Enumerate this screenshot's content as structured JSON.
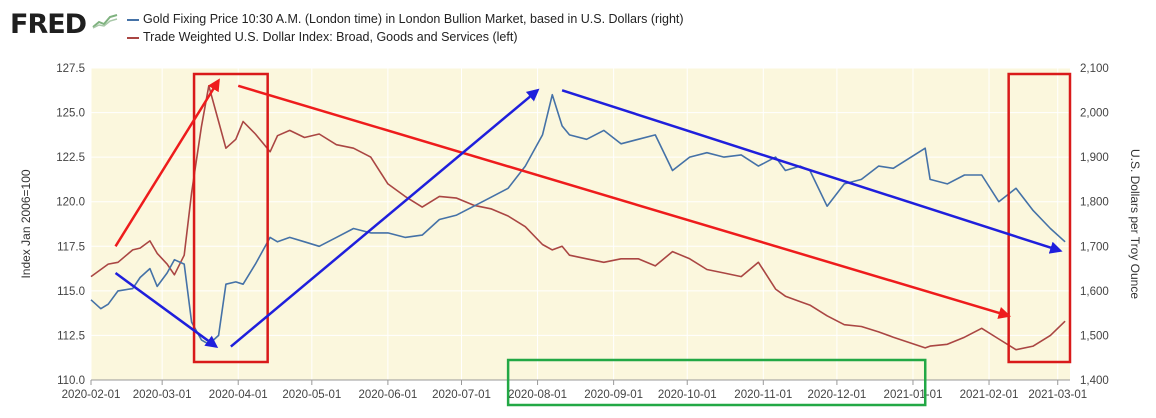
{
  "logo": {
    "text": "FRED"
  },
  "legend": [
    {
      "label": "Gold Fixing Price 10:30 A.M. (London time) in London Bullion Market, based in U.S. Dollars (right)",
      "color": "#4572a7"
    },
    {
      "label": "Trade Weighted U.S. Dollar Index: Broad, Goods and Services (left)",
      "color": "#aa4643"
    }
  ],
  "chart_data": {
    "type": "line",
    "ylabel": "Index Jan 2006=100",
    "y2label": "U.S. Dollars per Troy Ounce",
    "ylim": [
      110.0,
      127.5
    ],
    "y2lim": [
      1400,
      2100
    ],
    "xlim": [
      "2020-02-01",
      "2021-03-06"
    ],
    "x_ticks": [
      "2020-02-01",
      "2020-03-01",
      "2020-04-01",
      "2020-05-01",
      "2020-06-01",
      "2020-07-01",
      "2020-08-01",
      "2020-09-01",
      "2020-10-01",
      "2020-11-01",
      "2020-12-01",
      "2021-01-01",
      "2021-02-01",
      "2021-03-01"
    ],
    "y_ticks": [
      "110.0",
      "112.5",
      "115.0",
      "117.5",
      "120.0",
      "122.5",
      "125.0",
      "127.5"
    ],
    "y2_ticks": [
      "1,400",
      "1,500",
      "1,600",
      "1,700",
      "1,800",
      "1,900",
      "2,000",
      "2,100"
    ],
    "grid": true,
    "legend_position": "top",
    "series": [
      {
        "name": "Gold Fixing Price 10:30 A.M. (London time) in London Bullion Market, based in U.S. Dollars (right)",
        "axis": "right",
        "color": "#4572a7",
        "x": [
          "2020-02-01",
          "2020-02-05",
          "2020-02-08",
          "2020-02-12",
          "2020-02-18",
          "2020-02-21",
          "2020-02-25",
          "2020-02-28",
          "2020-03-03",
          "2020-03-06",
          "2020-03-10",
          "2020-03-13",
          "2020-03-17",
          "2020-03-20",
          "2020-03-24",
          "2020-03-27",
          "2020-03-31",
          "2020-04-03",
          "2020-04-08",
          "2020-04-14",
          "2020-04-17",
          "2020-04-22",
          "2020-04-28",
          "2020-05-04",
          "2020-05-11",
          "2020-05-18",
          "2020-05-25",
          "2020-06-01",
          "2020-06-08",
          "2020-06-15",
          "2020-06-22",
          "2020-06-29",
          "2020-07-06",
          "2020-07-13",
          "2020-07-20",
          "2020-07-27",
          "2020-08-03",
          "2020-08-07",
          "2020-08-11",
          "2020-08-14",
          "2020-08-21",
          "2020-08-28",
          "2020-09-04",
          "2020-09-11",
          "2020-09-18",
          "2020-09-25",
          "2020-10-02",
          "2020-10-09",
          "2020-10-16",
          "2020-10-23",
          "2020-10-30",
          "2020-11-06",
          "2020-11-10",
          "2020-11-16",
          "2020-11-20",
          "2020-11-27",
          "2020-12-04",
          "2020-12-11",
          "2020-12-18",
          "2020-12-24",
          "2021-01-06",
          "2021-01-08",
          "2021-01-15",
          "2021-01-22",
          "2021-01-29",
          "2021-02-05",
          "2021-02-12",
          "2021-02-19",
          "2021-02-26",
          "2021-03-04"
        ],
        "values": [
          1580,
          1560,
          1570,
          1600,
          1605,
          1630,
          1650,
          1610,
          1640,
          1670,
          1660,
          1530,
          1490,
          1480,
          1500,
          1615,
          1620,
          1615,
          1660,
          1720,
          1710,
          1720,
          1710,
          1700,
          1720,
          1740,
          1730,
          1730,
          1720,
          1725,
          1760,
          1770,
          1790,
          1810,
          1830,
          1880,
          1950,
          2040,
          1970,
          1950,
          1940,
          1960,
          1930,
          1940,
          1950,
          1870,
          1900,
          1910,
          1900,
          1905,
          1880,
          1900,
          1870,
          1880,
          1870,
          1790,
          1840,
          1850,
          1880,
          1875,
          1920,
          1850,
          1840,
          1860,
          1860,
          1800,
          1830,
          1780,
          1740,
          1710
        ]
      },
      {
        "name": "Trade Weighted U.S. Dollar Index: Broad, Goods and Services (left)",
        "axis": "left",
        "color": "#aa4643",
        "x": [
          "2020-02-01",
          "2020-02-05",
          "2020-02-08",
          "2020-02-12",
          "2020-02-18",
          "2020-02-21",
          "2020-02-25",
          "2020-02-28",
          "2020-03-03",
          "2020-03-06",
          "2020-03-10",
          "2020-03-13",
          "2020-03-17",
          "2020-03-20",
          "2020-03-24",
          "2020-03-27",
          "2020-03-31",
          "2020-04-03",
          "2020-04-08",
          "2020-04-14",
          "2020-04-17",
          "2020-04-22",
          "2020-04-28",
          "2020-05-04",
          "2020-05-11",
          "2020-05-18",
          "2020-05-25",
          "2020-06-01",
          "2020-06-08",
          "2020-06-15",
          "2020-06-22",
          "2020-06-29",
          "2020-07-06",
          "2020-07-13",
          "2020-07-20",
          "2020-07-27",
          "2020-08-03",
          "2020-08-07",
          "2020-08-11",
          "2020-08-14",
          "2020-08-21",
          "2020-08-28",
          "2020-09-04",
          "2020-09-11",
          "2020-09-18",
          "2020-09-25",
          "2020-10-02",
          "2020-10-09",
          "2020-10-16",
          "2020-10-23",
          "2020-10-30",
          "2020-11-06",
          "2020-11-10",
          "2020-11-16",
          "2020-11-20",
          "2020-11-27",
          "2020-12-04",
          "2020-12-11",
          "2020-12-18",
          "2020-12-24",
          "2021-01-06",
          "2021-01-08",
          "2021-01-15",
          "2021-01-22",
          "2021-01-29",
          "2021-02-05",
          "2021-02-12",
          "2021-02-19",
          "2021-02-26",
          "2021-03-04"
        ],
        "values": [
          115.8,
          116.2,
          116.5,
          116.6,
          117.3,
          117.4,
          117.8,
          117.1,
          116.5,
          115.9,
          117.0,
          120.5,
          124.2,
          126.5,
          124.5,
          123.0,
          123.5,
          124.5,
          123.8,
          122.8,
          123.7,
          124.0,
          123.6,
          123.8,
          123.2,
          123.0,
          122.5,
          121.0,
          120.3,
          119.7,
          120.3,
          120.2,
          119.8,
          119.6,
          119.2,
          118.6,
          117.6,
          117.3,
          117.5,
          117.0,
          116.8,
          116.6,
          116.8,
          116.8,
          116.4,
          117.2,
          116.8,
          116.2,
          116.0,
          115.8,
          116.6,
          115.1,
          114.7,
          114.4,
          114.2,
          113.6,
          113.1,
          113.0,
          112.7,
          112.4,
          111.8,
          111.9,
          112.0,
          112.4,
          112.9,
          112.3,
          111.7,
          111.9,
          112.5,
          113.3
        ]
      }
    ],
    "annotations": {
      "red_boxes": [
        [
          "2020-03-14",
          "2020-04-13"
        ],
        [
          "2021-02-09",
          "2021-03-06"
        ]
      ],
      "green_box": [
        "2020-07-20",
        "2021-01-06"
      ]
    }
  }
}
